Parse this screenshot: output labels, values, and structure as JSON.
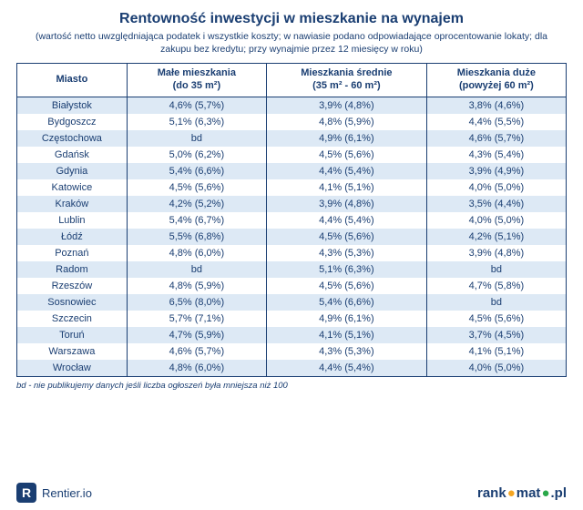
{
  "title": "Rentowność inwestycji w mieszkanie na wynajem",
  "subtitle": "(wartość netto uwzględniająca podatek i wszystkie koszty; w nawiasie podano odpowiadające oprocentowanie lokaty; dla zakupu bez kredytu; przy wynajmie przez 12 miesięcy w roku)",
  "columns": {
    "city": "Miasto",
    "small_l1": "Małe mieszkania",
    "small_l2": "(do 35 m²)",
    "mid_l1": "Mieszkania średnie",
    "mid_l2": "(35 m² - 60 m²)",
    "large_l1": "Mieszkania duże",
    "large_l2": "(powyżej 60 m²)"
  },
  "rows": [
    {
      "city": "Białystok",
      "small": "4,6% (5,7%)",
      "mid": "3,9% (4,8%)",
      "large": "3,8% (4,6%)"
    },
    {
      "city": "Bydgoszcz",
      "small": "5,1% (6,3%)",
      "mid": "4,8% (5,9%)",
      "large": "4,4% (5,5%)"
    },
    {
      "city": "Częstochowa",
      "small": "bd",
      "mid": "4,9% (6,1%)",
      "large": "4,6% (5,7%)"
    },
    {
      "city": "Gdańsk",
      "small": "5,0% (6,2%)",
      "mid": "4,5% (5,6%)",
      "large": "4,3% (5,4%)"
    },
    {
      "city": "Gdynia",
      "small": "5,4% (6,6%)",
      "mid": "4,4% (5,4%)",
      "large": "3,9% (4,9%)"
    },
    {
      "city": "Katowice",
      "small": "4,5% (5,6%)",
      "mid": "4,1% (5,1%)",
      "large": "4,0% (5,0%)"
    },
    {
      "city": "Kraków",
      "small": "4,2% (5,2%)",
      "mid": "3,9% (4,8%)",
      "large": "3,5% (4,4%)"
    },
    {
      "city": "Lublin",
      "small": "5,4% (6,7%)",
      "mid": "4,4% (5,4%)",
      "large": "4,0% (5,0%)"
    },
    {
      "city": "Łódź",
      "small": "5,5% (6,8%)",
      "mid": "4,5% (5,6%)",
      "large": "4,2% (5,1%)"
    },
    {
      "city": "Poznań",
      "small": "4,8% (6,0%)",
      "mid": "4,3% (5,3%)",
      "large": "3,9% (4,8%)"
    },
    {
      "city": "Radom",
      "small": "bd",
      "mid": "5,1% (6,3%)",
      "large": "bd"
    },
    {
      "city": "Rzeszów",
      "small": "4,8% (5,9%)",
      "mid": "4,5% (5,6%)",
      "large": "4,7% (5,8%)"
    },
    {
      "city": "Sosnowiec",
      "small": "6,5% (8,0%)",
      "mid": "5,4% (6,6%)",
      "large": "bd"
    },
    {
      "city": "Szczecin",
      "small": "5,7% (7,1%)",
      "mid": "4,9% (6,1%)",
      "large": "4,5% (5,6%)"
    },
    {
      "city": "Toruń",
      "small": "4,7% (5,9%)",
      "mid": "4,1% (5,1%)",
      "large": "3,7% (4,5%)"
    },
    {
      "city": "Warszawa",
      "small": "4,6% (5,7%)",
      "mid": "4,3% (5,3%)",
      "large": "4,1% (5,1%)"
    },
    {
      "city": "Wrocław",
      "small": "4,8% (6,0%)",
      "mid": "4,4% (5,4%)",
      "large": "4,0% (5,0%)"
    }
  ],
  "footnote": "bd - nie publikujemy danych jeśli liczba ogłoszeń była mniejsza niż 100",
  "footer": {
    "rentier_badge": "R",
    "rentier_text": "Rentier.io",
    "rankomat_a": "rank",
    "rankomat_b": "mat",
    "rankomat_c": ".pl"
  },
  "style": {
    "brand_color": "#1a3e72",
    "row_stripe": "#dde9f5",
    "accent_green": "#2aa84a",
    "accent_orange": "#f5a623"
  }
}
